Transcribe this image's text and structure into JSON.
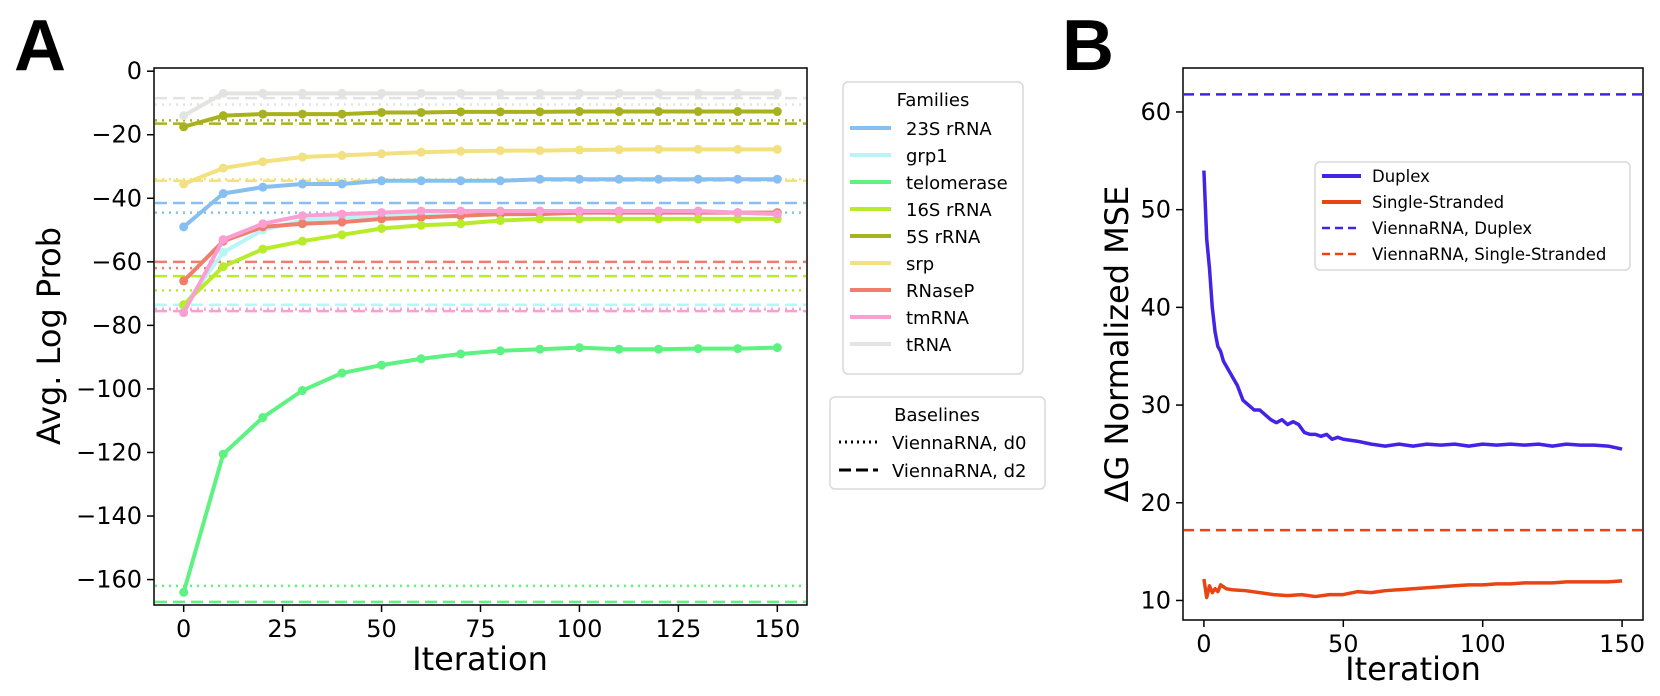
{
  "panel_labels": {
    "a": "A",
    "b": "B"
  },
  "chart_data": [
    {
      "type": "line",
      "panel": "A",
      "xlabel": "Iteration",
      "ylabel": "Avg. Log Prob",
      "xlim": [
        -7.5,
        157.5
      ],
      "ylim": [
        -168,
        1
      ],
      "xticks": [
        0,
        25,
        50,
        75,
        100,
        125,
        150
      ],
      "yticks": [
        0,
        -20,
        -40,
        -60,
        -80,
        -100,
        -120,
        -140,
        -160
      ],
      "x": [
        0,
        10,
        20,
        30,
        40,
        50,
        60,
        70,
        80,
        90,
        100,
        110,
        120,
        130,
        140,
        150
      ],
      "legend_families_title": "Families",
      "legend_baselines_title": "Baselines",
      "baseline_styles": [
        {
          "label": "ViennaRNA, d0",
          "style": "dotted"
        },
        {
          "label": "ViennaRNA, d2",
          "style": "dashed"
        }
      ],
      "series": [
        {
          "name": "23S rRNA",
          "color": "#86bff0",
          "d0": -44.5,
          "d2": -41.5,
          "values": [
            -49,
            -38.5,
            -36.5,
            -35.5,
            -35.5,
            -34.5,
            -34.5,
            -34.5,
            -34.5,
            -34,
            -34,
            -34,
            -34,
            -34,
            -34,
            -34
          ]
        },
        {
          "name": "grp1",
          "color": "#b8f5f7",
          "d0": -74.5,
          "d2": -73.5,
          "values": [
            -74,
            -57,
            -50,
            -47,
            -46,
            -45.5,
            -45,
            -45,
            -44.5,
            -44.5,
            -44.5,
            -44.5,
            -44.5,
            -44.5,
            -44.5,
            -44.5
          ]
        },
        {
          "name": "telomerase",
          "color": "#5ef282",
          "d0": -162,
          "d2": -167,
          "values": [
            -164,
            -120.5,
            -109,
            -100.5,
            -95,
            -92.5,
            -90.5,
            -89,
            -88,
            -87.5,
            -87,
            -87.5,
            -87.5,
            -87.3,
            -87.3,
            -87
          ]
        },
        {
          "name": "16S rRNA",
          "color": "#b8ec2a",
          "d0": -69,
          "d2": -64.5,
          "values": [
            -73.5,
            -61.5,
            -56,
            -53.5,
            -51.5,
            -49.5,
            -48.5,
            -48,
            -47,
            -46.5,
            -46.5,
            -46.5,
            -46.5,
            -46.5,
            -46.5,
            -46.5
          ]
        },
        {
          "name": "5S rRNA",
          "color": "#a8b21f",
          "d0": -15.5,
          "d2": -16.5,
          "values": [
            -17.5,
            -14,
            -13.5,
            -13.5,
            -13.5,
            -13,
            -13,
            -12.8,
            -12.8,
            -12.8,
            -12.7,
            -12.7,
            -12.7,
            -12.7,
            -12.7,
            -12.7
          ]
        },
        {
          "name": "srp",
          "color": "#f3e07e",
          "d0": -34,
          "d2": -34.5,
          "values": [
            -35.5,
            -30.5,
            -28.5,
            -27,
            -26.5,
            -26,
            -25.5,
            -25.2,
            -25,
            -25,
            -24.8,
            -24.7,
            -24.6,
            -24.6,
            -24.6,
            -24.6
          ]
        },
        {
          "name": "RNaseP",
          "color": "#ef7e6c",
          "d0": -62,
          "d2": -60,
          "values": [
            -66,
            -53.5,
            -49,
            -48,
            -47.5,
            -46.5,
            -46,
            -45.5,
            -45,
            -45,
            -44.5,
            -44.5,
            -44.5,
            -44.5,
            -44.5,
            -44.5
          ]
        },
        {
          "name": "tmRNA",
          "color": "#fb9fd2",
          "d0": -75,
          "d2": -75.5,
          "values": [
            -76,
            -53,
            -48,
            -45.5,
            -45,
            -44.5,
            -44,
            -44,
            -44,
            -44,
            -44,
            -44,
            -44,
            -44,
            -44.5,
            -45
          ]
        },
        {
          "name": "tRNA",
          "color": "#e2e4e2",
          "d0": -10.5,
          "d2": -8.5,
          "values": [
            -14,
            -7,
            -7,
            -7,
            -7,
            -7,
            -7,
            -7,
            -7,
            -7,
            -7,
            -7,
            -7,
            -7,
            -7,
            -7
          ]
        }
      ]
    },
    {
      "type": "line",
      "panel": "B",
      "xlabel": "Iteration",
      "ylabel": "ΔG Normalized MSE",
      "xlim": [
        -7.5,
        157.5
      ],
      "ylim": [
        8,
        64.5
      ],
      "xticks": [
        0,
        50,
        100,
        150
      ],
      "yticks": [
        10,
        20,
        30,
        40,
        50,
        60
      ],
      "series": [
        {
          "name": "Duplex",
          "color": "#4422e6",
          "style": "solid",
          "x": [
            0,
            1,
            2,
            3,
            4,
            5,
            6,
            7,
            8,
            10,
            12,
            14,
            16,
            18,
            20,
            22,
            24,
            26,
            28,
            30,
            32,
            34,
            36,
            38,
            40,
            42,
            44,
            46,
            48,
            50,
            55,
            60,
            65,
            70,
            75,
            80,
            85,
            90,
            95,
            100,
            105,
            110,
            115,
            120,
            125,
            130,
            135,
            140,
            145,
            150
          ],
          "values": [
            54,
            47,
            44,
            40,
            37.5,
            36,
            35.5,
            34.5,
            34,
            33,
            32,
            30.5,
            30,
            29.5,
            29.5,
            29,
            28.5,
            28.2,
            28.5,
            28,
            28.3,
            28,
            27.2,
            27,
            27,
            26.8,
            27,
            26.5,
            26.7,
            26.5,
            26.3,
            26,
            25.8,
            26,
            25.8,
            26,
            25.9,
            26,
            25.8,
            26,
            25.9,
            26,
            25.9,
            26,
            25.8,
            26,
            25.9,
            25.9,
            25.8,
            25.5
          ]
        },
        {
          "name": "Single-Stranded",
          "color": "#e94514",
          "style": "solid",
          "x": [
            0,
            1,
            2,
            3,
            4,
            5,
            6,
            8,
            10,
            15,
            20,
            25,
            30,
            35,
            40,
            45,
            50,
            55,
            60,
            65,
            70,
            75,
            80,
            85,
            90,
            95,
            100,
            105,
            110,
            115,
            120,
            125,
            130,
            135,
            140,
            145,
            150
          ],
          "values": [
            12.2,
            10.3,
            11.5,
            10.8,
            11.2,
            10.9,
            11.6,
            11.2,
            11.1,
            11,
            10.8,
            10.6,
            10.5,
            10.6,
            10.4,
            10.6,
            10.6,
            10.9,
            10.8,
            11,
            11.1,
            11.2,
            11.3,
            11.4,
            11.5,
            11.6,
            11.6,
            11.7,
            11.7,
            11.8,
            11.8,
            11.8,
            11.9,
            11.9,
            11.9,
            11.9,
            12
          ]
        },
        {
          "name": "ViennaRNA, Duplex",
          "color": "#4422e6",
          "style": "dashed",
          "constant": 61.8
        },
        {
          "name": "ViennaRNA, Single-Stranded",
          "color": "#e94514",
          "style": "dashed",
          "constant": 17.2
        }
      ]
    }
  ]
}
